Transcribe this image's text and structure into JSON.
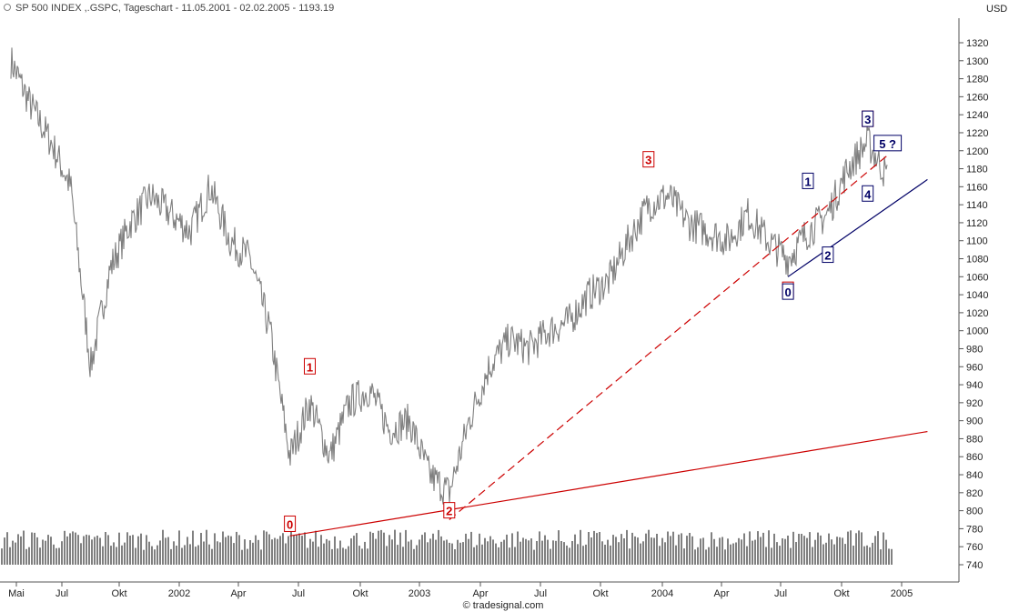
{
  "header": {
    "title": "SP 500 INDEX ,.GSPC, Tageschart - 11.05.2001 - 02.02.2005 - 1193.19",
    "currency": "USD"
  },
  "watermark": "© tradesignal.com",
  "chart_data": {
    "type": "line",
    "title": "SP 500 INDEX ,.GSPC, Tageschart - 11.05.2001 - 02.02.2005 - 1193.19",
    "xlabel": "",
    "ylabel": "USD",
    "x_tick_labels": [
      "Mai",
      "Jul",
      "Okt",
      "2002",
      "Apr",
      "Jul",
      "Okt",
      "2003",
      "Apr",
      "Jul",
      "Okt",
      "2004",
      "Apr",
      "Jul",
      "Okt",
      "2005"
    ],
    "y_ticks": [
      740,
      760,
      780,
      800,
      820,
      840,
      860,
      880,
      900,
      920,
      940,
      960,
      980,
      1000,
      1020,
      1040,
      1060,
      1080,
      1100,
      1120,
      1140,
      1160,
      1180,
      1200,
      1220,
      1240,
      1260,
      1280,
      1300,
      1320
    ],
    "ylim": [
      730,
      1335
    ],
    "price_series": {
      "name": "SP 500 INDEX",
      "color": "#808080",
      "x": [
        "2001-05",
        "2001-06",
        "2001-07",
        "2001-08",
        "2001-09",
        "2001-10",
        "2001-11",
        "2001-12",
        "2002-01",
        "2002-02",
        "2002-03",
        "2002-04",
        "2002-05",
        "2002-06",
        "2002-07",
        "2002-08",
        "2002-09",
        "2002-10",
        "2002-11",
        "2002-12",
        "2003-01",
        "2003-02",
        "2003-03",
        "2003-04",
        "2003-05",
        "2003-06",
        "2003-07",
        "2003-08",
        "2003-09",
        "2003-10",
        "2003-11",
        "2003-12",
        "2004-01",
        "2004-02",
        "2004-03",
        "2004-04",
        "2004-05",
        "2004-06",
        "2004-07",
        "2004-08",
        "2004-09",
        "2004-10",
        "2004-11",
        "2004-12",
        "2005-01"
      ],
      "values": [
        1300,
        1250,
        1210,
        1160,
        960,
        1070,
        1120,
        1150,
        1130,
        1110,
        1160,
        1100,
        1080,
        1000,
        860,
        920,
        860,
        920,
        935,
        890,
        900,
        840,
        820,
        900,
        960,
        990,
        980,
        1000,
        1010,
        1040,
        1055,
        1100,
        1140,
        1150,
        1120,
        1110,
        1100,
        1130,
        1100,
        1080,
        1110,
        1130,
        1180,
        1210,
        1170
      ]
    },
    "volume": {
      "name": "Volume",
      "color": "#808080",
      "baseline_value": 740,
      "typical_top_value": 770
    },
    "trendlines": [
      {
        "name": "support",
        "color": "#cc0000",
        "style": "solid",
        "from": [
          "2002-07",
          772
        ],
        "to": [
          "2005-03",
          888
        ]
      },
      {
        "name": "channel",
        "color": "#cc0000",
        "style": "dashed",
        "from": [
          "2003-03",
          790
        ],
        "to": [
          "2005-01",
          1195
        ]
      },
      {
        "name": "uptrend",
        "color": "#000066",
        "style": "solid",
        "from": [
          "2004-08",
          1060
        ],
        "to": [
          "2005-03",
          1168
        ]
      }
    ],
    "wave_labels": [
      {
        "text": "0",
        "color": "#cc0000",
        "x": "2002-07",
        "y": 785
      },
      {
        "text": "1",
        "color": "#cc0000",
        "x": "2002-08",
        "y": 960
      },
      {
        "text": "2",
        "color": "#cc0000",
        "x": "2003-03",
        "y": 800
      },
      {
        "text": "3",
        "color": "#cc0000",
        "x": "2004-01",
        "y": 1190
      },
      {
        "text": "4",
        "color": "#cc0000",
        "x": "2004-08",
        "y": 1045
      },
      {
        "text": "5",
        "color": "#cc0000",
        "x": "2004-12",
        "y": 1235
      },
      {
        "text": "0",
        "color": "#000066",
        "x": "2004-08",
        "y": 1043
      },
      {
        "text": "1",
        "color": "#000066",
        "x": "2004-09",
        "y": 1166
      },
      {
        "text": "2",
        "color": "#000066",
        "x": "2004-10",
        "y": 1084
      },
      {
        "text": "3",
        "color": "#000066",
        "x": "2004-12",
        "y": 1235
      },
      {
        "text": "4",
        "color": "#000066",
        "x": "2004-12",
        "y": 1152
      },
      {
        "text": "5 ?",
        "color": "#000066",
        "x": "2005-01",
        "y": 1208
      }
    ],
    "grid": false,
    "legend": "none"
  }
}
